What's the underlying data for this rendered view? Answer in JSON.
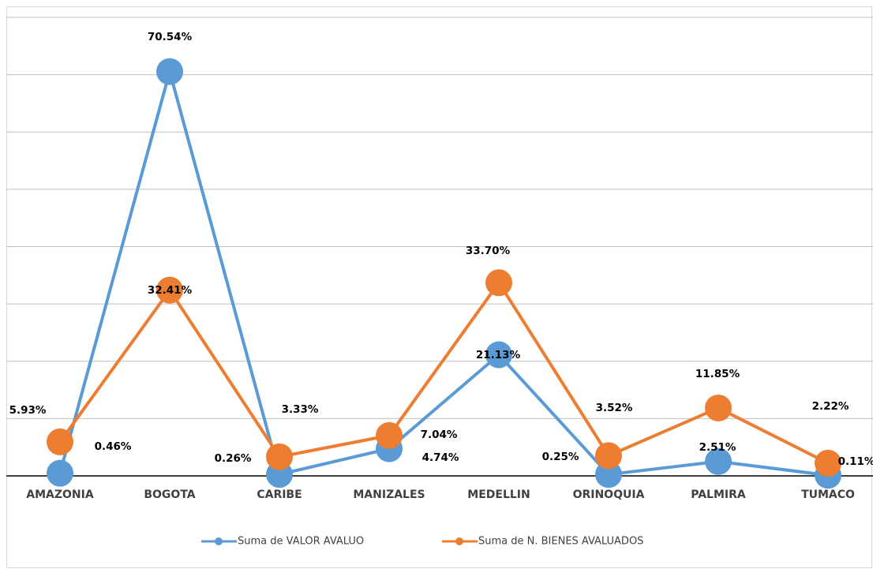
{
  "chart_data": {
    "type": "line",
    "categories": [
      "AMAZONIA",
      "BOGOTA",
      "CARIBE",
      "MANIZALES",
      "MEDELLIN",
      "ORINOQUIA",
      "PALMIRA",
      "TUMACO"
    ],
    "series": [
      {
        "name": "Suma de VALOR AVALUO",
        "color": "#5b9bd5",
        "values": [
          0.46,
          70.54,
          0.26,
          4.74,
          21.13,
          0.25,
          2.51,
          0.11
        ],
        "value_labels": [
          "0.46%",
          "70.54%",
          "0.26%",
          "4.74%",
          "21.13%",
          "0.25%",
          "2.51%",
          "0.11%"
        ]
      },
      {
        "name": "Suma de N. BIENES AVALUADOS",
        "color": "#ed7d31",
        "values": [
          5.93,
          32.41,
          3.33,
          7.04,
          33.7,
          3.52,
          11.85,
          2.22
        ],
        "value_labels": [
          "5.93%",
          "32.41%",
          "3.33%",
          "7.04%",
          "33.70%",
          "3.52%",
          "11.85%",
          "2.22%"
        ]
      }
    ],
    "ylim": [
      0,
      80
    ],
    "yticks": [
      0,
      10,
      20,
      30,
      40,
      50,
      60,
      70,
      80
    ],
    "grid": true
  }
}
